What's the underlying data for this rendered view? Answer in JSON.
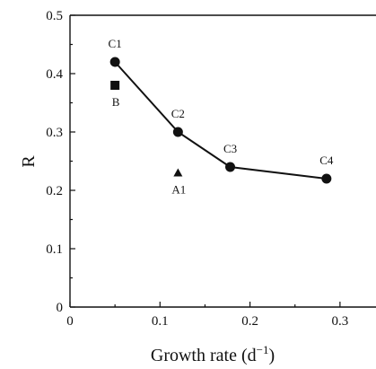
{
  "chart_data": {
    "type": "scatter",
    "xlabel": "Growth rate (d",
    "xlabel_sup": "−1",
    "xlabel_close": ")",
    "ylabel": "R",
    "xlim": [
      0,
      0.34
    ],
    "ylim": [
      0,
      0.5
    ],
    "x_ticks": [
      0,
      0.1,
      0.2,
      0.3
    ],
    "x_tick_labels": [
      "0",
      "0.1",
      "0.2",
      "0.3"
    ],
    "y_ticks": [
      0,
      0.1,
      0.2,
      0.3,
      0.4,
      0.5
    ],
    "y_tick_labels": [
      "0",
      "0.1",
      "0.2",
      "0.3",
      "0.4",
      "0.5"
    ],
    "grid": false,
    "series": [
      {
        "marker": "circle",
        "connected": true,
        "points": [
          {
            "label": "C1",
            "x": 0.05,
            "y": 0.42
          },
          {
            "label": "C2",
            "x": 0.12,
            "y": 0.3
          },
          {
            "label": "C3",
            "x": 0.178,
            "y": 0.24
          },
          {
            "label": "C4",
            "x": 0.285,
            "y": 0.22
          }
        ]
      },
      {
        "marker": "square",
        "connected": false,
        "points": [
          {
            "label": "B",
            "x": 0.05,
            "y": 0.38
          }
        ]
      },
      {
        "marker": "triangle",
        "connected": false,
        "points": [
          {
            "label": "A1",
            "x": 0.12,
            "y": 0.23
          }
        ]
      }
    ]
  }
}
